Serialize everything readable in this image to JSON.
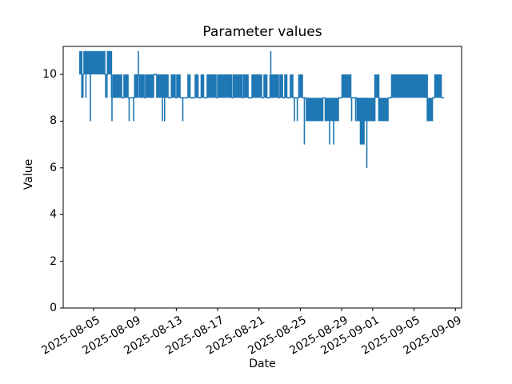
{
  "chart_data": {
    "type": "line",
    "title": "Parameter values",
    "xlabel": "Date",
    "ylabel": "Value",
    "line_color": "#1f77b4",
    "axis_color": "#000000",
    "background_color": "#ffffff",
    "grid": false,
    "legend": null,
    "x_axis": {
      "unit": "days_since_2025-08-05",
      "range": [
        -2.94,
        35.6
      ],
      "ticks": [
        {
          "d": 0,
          "label": "2025-08-05"
        },
        {
          "d": 4,
          "label": "2025-08-09"
        },
        {
          "d": 8,
          "label": "2025-08-13"
        },
        {
          "d": 12,
          "label": "2025-08-17"
        },
        {
          "d": 16,
          "label": "2025-08-21"
        },
        {
          "d": 20,
          "label": "2025-08-25"
        },
        {
          "d": 24,
          "label": "2025-08-29"
        },
        {
          "d": 27,
          "label": "2025-09-01"
        },
        {
          "d": 31,
          "label": "2025-09-05"
        },
        {
          "d": 35,
          "label": "2025-09-09"
        }
      ]
    },
    "y_axis": {
      "range": [
        0,
        11.2
      ],
      "ticks": [
        0,
        2,
        4,
        6,
        8,
        10
      ]
    },
    "series": {
      "name": "Parameter values",
      "description": "Dense integer-valued time series (values 6-11). Encoded as runs [day_start, day_end, value_min, value_max]; a run with min<max renders as a solid band of rapid alternation, min=max as a flat line. Spikes are brief vertical excursions [day, value_from, value_to].",
      "runs": [
        [
          -1.39,
          -1.14,
          10,
          11
        ],
        [
          -1.14,
          -1.03,
          9,
          10
        ],
        [
          -1.03,
          -0.93,
          10,
          10
        ],
        [
          -0.93,
          1.08,
          10,
          11
        ],
        [
          1.08,
          1.34,
          10,
          10
        ],
        [
          1.34,
          1.73,
          10,
          11
        ],
        [
          1.73,
          1.86,
          9,
          9
        ],
        [
          1.86,
          2.71,
          9,
          10
        ],
        [
          2.71,
          2.94,
          9,
          9
        ],
        [
          2.94,
          3.33,
          9,
          10
        ],
        [
          3.33,
          3.97,
          9,
          9
        ],
        [
          3.97,
          4.28,
          9,
          10
        ],
        [
          4.28,
          4.43,
          10,
          10
        ],
        [
          4.43,
          4.88,
          9,
          10
        ],
        [
          4.88,
          5.03,
          9,
          9
        ],
        [
          5.03,
          5.8,
          9,
          10
        ],
        [
          5.8,
          6.11,
          10,
          10
        ],
        [
          6.11,
          7.2,
          9,
          10
        ],
        [
          7.2,
          7.53,
          9,
          9
        ],
        [
          7.53,
          7.89,
          9,
          10
        ],
        [
          7.89,
          8.05,
          9,
          9
        ],
        [
          8.05,
          8.36,
          9,
          10
        ],
        [
          8.36,
          9.13,
          9,
          9
        ],
        [
          9.13,
          9.33,
          9,
          10
        ],
        [
          9.33,
          9.83,
          9,
          9
        ],
        [
          9.83,
          10.1,
          9,
          10
        ],
        [
          10.1,
          10.41,
          9,
          9
        ],
        [
          10.41,
          10.64,
          9,
          10
        ],
        [
          10.64,
          10.99,
          9,
          9
        ],
        [
          10.99,
          11.84,
          9,
          10
        ],
        [
          11.84,
          12.0,
          9,
          9
        ],
        [
          12.0,
          13.35,
          9,
          10
        ],
        [
          13.35,
          13.51,
          9,
          9
        ],
        [
          13.51,
          14.36,
          9,
          10
        ],
        [
          14.36,
          14.51,
          9,
          9
        ],
        [
          14.51,
          14.94,
          9,
          10
        ],
        [
          14.94,
          15.33,
          9,
          9
        ],
        [
          15.33,
          16.25,
          9,
          10
        ],
        [
          16.25,
          16.49,
          9,
          9
        ],
        [
          16.49,
          16.76,
          9,
          10
        ],
        [
          16.76,
          17.07,
          9,
          9
        ],
        [
          17.07,
          17.88,
          9,
          10
        ],
        [
          17.88,
          18.03,
          9,
          9
        ],
        [
          18.03,
          18.27,
          9,
          10
        ],
        [
          18.27,
          18.5,
          9,
          9
        ],
        [
          18.5,
          18.69,
          9,
          10
        ],
        [
          18.69,
          19.04,
          9,
          9
        ],
        [
          19.04,
          19.27,
          9,
          10
        ],
        [
          19.27,
          19.85,
          9,
          9
        ],
        [
          19.85,
          20.2,
          9,
          10
        ],
        [
          20.2,
          20.59,
          9,
          9
        ],
        [
          20.59,
          22.17,
          8,
          9
        ],
        [
          22.17,
          22.41,
          9,
          9
        ],
        [
          22.41,
          23.68,
          8,
          9
        ],
        [
          23.68,
          24.03,
          9,
          9
        ],
        [
          24.03,
          24.88,
          9,
          10
        ],
        [
          24.88,
          25.5,
          9,
          9
        ],
        [
          25.5,
          25.81,
          8,
          9
        ],
        [
          25.81,
          26.16,
          7,
          9
        ],
        [
          26.16,
          27.21,
          8,
          9
        ],
        [
          27.21,
          27.59,
          9,
          10
        ],
        [
          27.59,
          28.48,
          8,
          9
        ],
        [
          28.48,
          28.83,
          9,
          9
        ],
        [
          28.83,
          32.28,
          9,
          10
        ],
        [
          32.28,
          32.78,
          8,
          9
        ],
        [
          32.78,
          33.01,
          9,
          9
        ],
        [
          33.01,
          33.63,
          9,
          10
        ],
        [
          33.63,
          33.9,
          9,
          9
        ]
      ],
      "spikes": [
        [
          -0.74,
          10,
          9
        ],
        [
          -0.31,
          10,
          8
        ],
        [
          1.16,
          10,
          9
        ],
        [
          1.3,
          10,
          9
        ],
        [
          1.78,
          9,
          8
        ],
        [
          3.44,
          9,
          8
        ],
        [
          3.87,
          9,
          8
        ],
        [
          4.33,
          10,
          11
        ],
        [
          6.66,
          9,
          8
        ],
        [
          6.87,
          9,
          8
        ],
        [
          8.63,
          9,
          8
        ],
        [
          17.14,
          10,
          11
        ],
        [
          19.43,
          9,
          8
        ],
        [
          19.71,
          9,
          8
        ],
        [
          20.39,
          9,
          7
        ],
        [
          22.83,
          8,
          7
        ],
        [
          23.22,
          8,
          7
        ],
        [
          24.96,
          9,
          8
        ],
        [
          25.35,
          9,
          8
        ],
        [
          26.43,
          8,
          6
        ]
      ],
      "value_min": 6,
      "value_max": 11
    }
  }
}
